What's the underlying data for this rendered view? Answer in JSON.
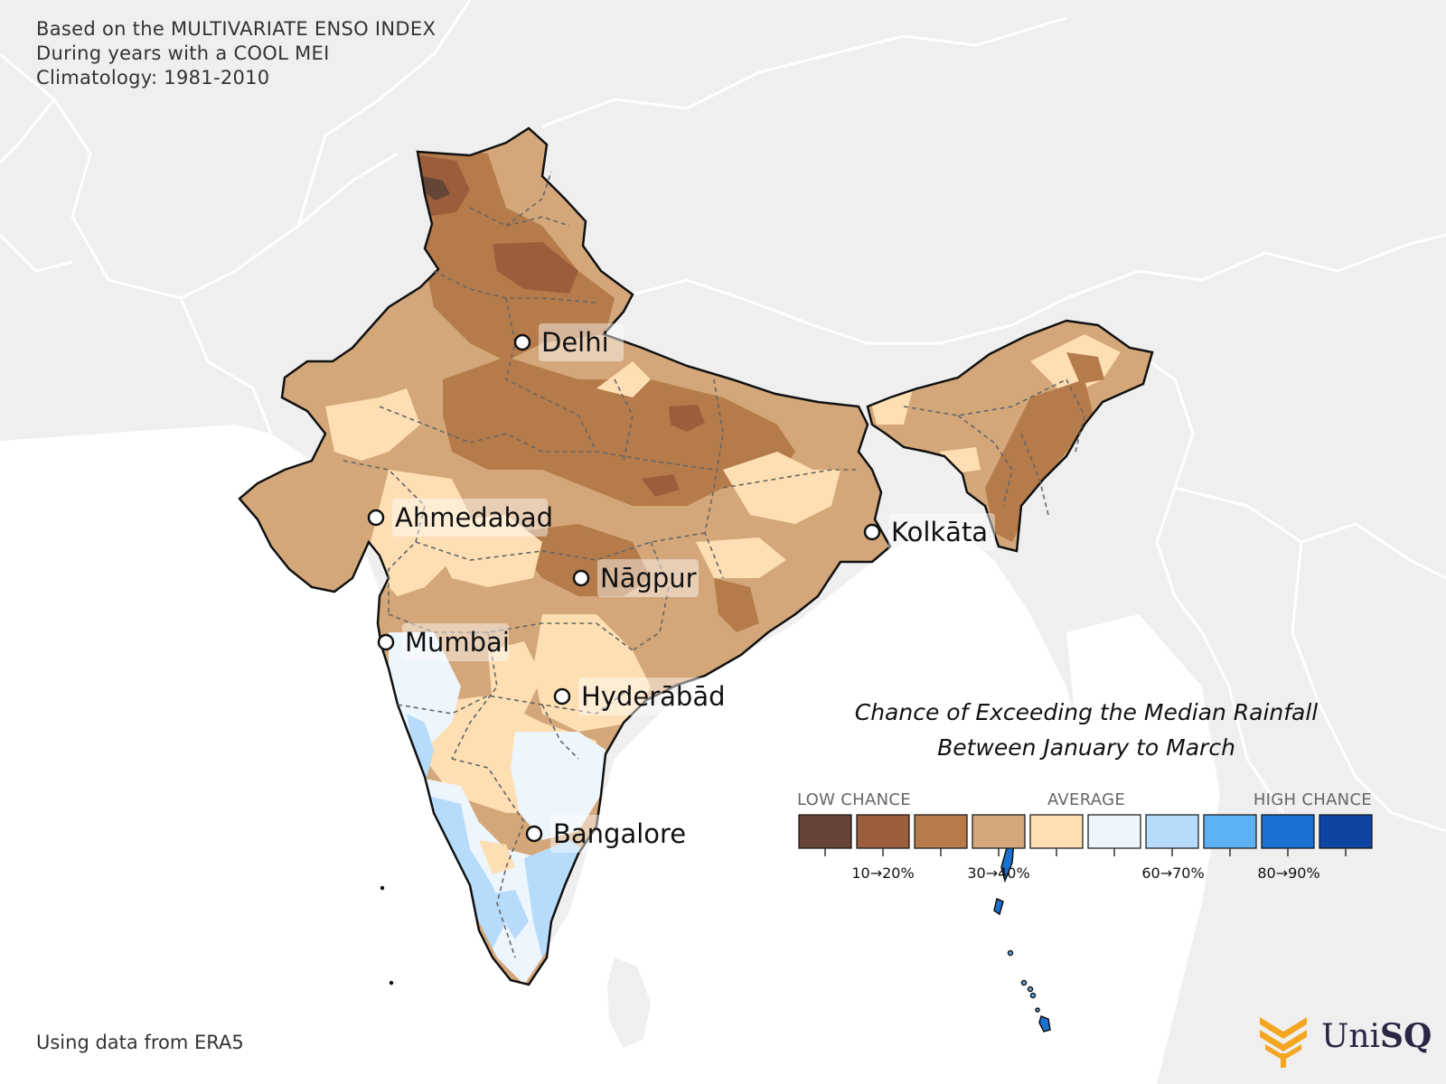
{
  "info": {
    "line1": "Based on the MULTIVARIATE ENSO INDEX",
    "line2": "During years with a COOL MEI",
    "line3": "Climatology: 1981-2010"
  },
  "footer": "Using data from ERA5",
  "logo": {
    "text_regular": "Uni",
    "text_bold": "SQ"
  },
  "legend": {
    "title_line1": "Chance of Exceeding the Median Rainfall",
    "title_line2": "Between January to March",
    "low_label": "LOW CHANCE",
    "avg_label": "AVERAGE",
    "high_label": "HIGH CHANCE",
    "pct_labels": [
      "10→20%",
      "30→40%",
      "60→70%",
      "80→90%"
    ],
    "colors": [
      "#654536",
      "#9b5d3c",
      "#b57b4a",
      "#d3a779",
      "#fddfb3",
      "#edf5fd",
      "#b6dbfb",
      "#5cb2f2",
      "#1b72d3",
      "#0f45a2"
    ]
  },
  "cities": [
    {
      "name": "Delhi"
    },
    {
      "name": "Ahmedabad"
    },
    {
      "name": "Kolkāta"
    },
    {
      "name": "Nāgpur"
    },
    {
      "name": "Mumbai"
    },
    {
      "name": "Hyderābād"
    },
    {
      "name": "Bangalore"
    }
  ],
  "colors": {
    "land_background": "#efefef",
    "ocean": "#ffffff",
    "border": "#ffffff"
  }
}
